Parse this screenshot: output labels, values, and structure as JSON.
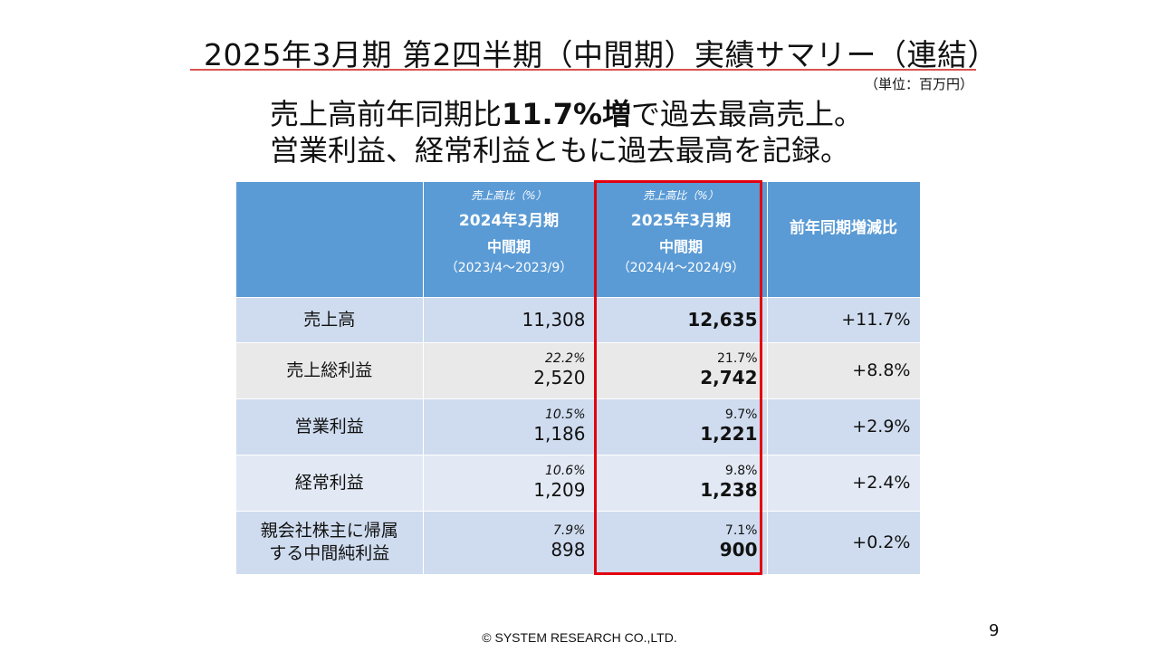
{
  "slide": {
    "title": "2025年3月期  第2四半期（中間期）実績サマリー（連結）",
    "unit": "（単位：百万円）",
    "headline_line1_pre": "売上高前年同期比",
    "headline_line1_bold": "11.7%増",
    "headline_line1_post": "で過去最高売上。",
    "headline_line2": "営業利益、経常利益ともに過去最高を記録。",
    "footer": "© SYSTEM RESEARCH CO.,LTD.",
    "page_number": "9",
    "highlight_color": "#e3000f",
    "header_color": "#5b9bd5"
  },
  "table": {
    "columns": [
      {
        "ratio_label": "売上高比（%）",
        "period": "2024年3月期",
        "sub": "中間期",
        "range": "（2023/4～2023/9）"
      },
      {
        "ratio_label": "売上高比（%）",
        "period": "2025年3月期",
        "sub": "中間期",
        "range": "（2024/4～2024/9）"
      }
    ],
    "change_header": "前年同期増減比",
    "rows": [
      {
        "label": "売上高",
        "prev_pct": "",
        "prev_val": "11,308",
        "curr_pct": "",
        "curr_val": "12,635",
        "change": "+11.7%"
      },
      {
        "label": "売上総利益",
        "prev_pct": "22.2%",
        "prev_val": "2,520",
        "curr_pct": "21.7%",
        "curr_val": "2,742",
        "change": "+8.8%"
      },
      {
        "label": "営業利益",
        "prev_pct": "10.5%",
        "prev_val": "1,186",
        "curr_pct": "9.7%",
        "curr_val": "1,221",
        "change": "+2.9%"
      },
      {
        "label": "経常利益",
        "prev_pct": "10.6%",
        "prev_val": "1,209",
        "curr_pct": "9.8%",
        "curr_val": "1,238",
        "change": "+2.4%"
      },
      {
        "label_line1": "親会社株主に帰属",
        "label_line2": "する中間純利益",
        "prev_pct": "7.9%",
        "prev_val": "898",
        "curr_pct": "7.1%",
        "curr_val": "900",
        "change": "+0.2%"
      }
    ]
  }
}
